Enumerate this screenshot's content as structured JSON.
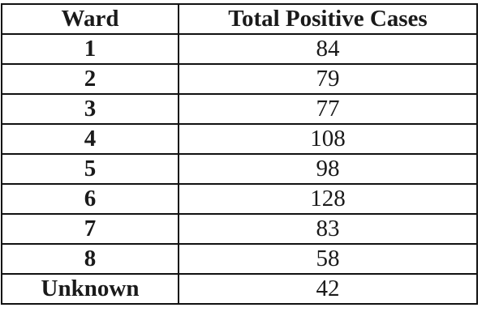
{
  "table": {
    "headers": [
      "Ward",
      "Total Positive Cases"
    ],
    "rows": [
      {
        "ward": "1",
        "cases": "84"
      },
      {
        "ward": "2",
        "cases": "79"
      },
      {
        "ward": "3",
        "cases": "77"
      },
      {
        "ward": "4",
        "cases": "108"
      },
      {
        "ward": "5",
        "cases": "98"
      },
      {
        "ward": "6",
        "cases": "128"
      },
      {
        "ward": "7",
        "cases": "83"
      },
      {
        "ward": "8",
        "cases": "58"
      },
      {
        "ward": "Unknown",
        "cases": "42"
      }
    ]
  }
}
